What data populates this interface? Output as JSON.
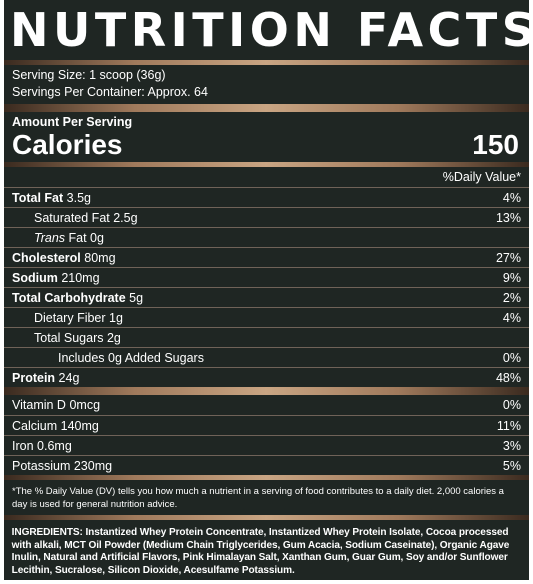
{
  "title": "NUTRITION FACTS",
  "serving_size": "Serving Size: 1 scoop (36g)",
  "servings_per_container": "Servings Per Container: Approx. 64",
  "amount_per_serving": "Amount Per Serving",
  "calories_label": "Calories",
  "calories_value": "150",
  "daily_value_header": "%Daily Value*",
  "nutrients": [
    {
      "name": "Total Fat",
      "amount": "3.5g",
      "dv": "4%"
    },
    {
      "name": "Saturated Fat",
      "amount": "2.5g",
      "dv": "13%"
    },
    {
      "name": "Trans",
      "amount": "Fat 0g",
      "dv": ""
    },
    {
      "name": "Cholesterol",
      "amount": "80mg",
      "dv": "27%"
    },
    {
      "name": "Sodium",
      "amount": "210mg",
      "dv": "9%"
    },
    {
      "name": "Total Carbohydrate",
      "amount": "5g",
      "dv": "2%"
    },
    {
      "name": "Dietary Fiber",
      "amount": "1g",
      "dv": "4%"
    },
    {
      "name": "Total Sugars",
      "amount": "2g",
      "dv": ""
    },
    {
      "name": "Includes 0g Added Sugars",
      "amount": "",
      "dv": "0%"
    },
    {
      "name": "Protein",
      "amount": "24g",
      "dv": "48%"
    }
  ],
  "vitamins": [
    {
      "name": "Vitamin D",
      "amount": "0mcg",
      "dv": "0%"
    },
    {
      "name": "Calcium",
      "amount": "140mg",
      "dv": "11%"
    },
    {
      "name": "Iron",
      "amount": "0.6mg",
      "dv": "3%"
    },
    {
      "name": "Potassium",
      "amount": "230mg",
      "dv": "5%"
    }
  ],
  "footnote": "*The % Daily Value (DV) tells you how much a nutrient in a serving of food contributes to a daily diet. 2,000 calories a day is used for general nutrition advice.",
  "ingredients": "INGREDIENTS: Instantized Whey Protein Concentrate, Instantized Whey Protein Isolate, Cocoa processed with alkali, MCT Oil Powder (Medium Chain Triglycerides, Gum Acacia, Sodium Caseinate), Organic Agave Inulin, Natural and Artificial Flavors, Pink Himalayan Salt, Xanthan Gum, Guar Gum, Soy and/or Sunflower Lecithin, Sucralose, Silicon Dioxide, Acesulfame Potassium."
}
